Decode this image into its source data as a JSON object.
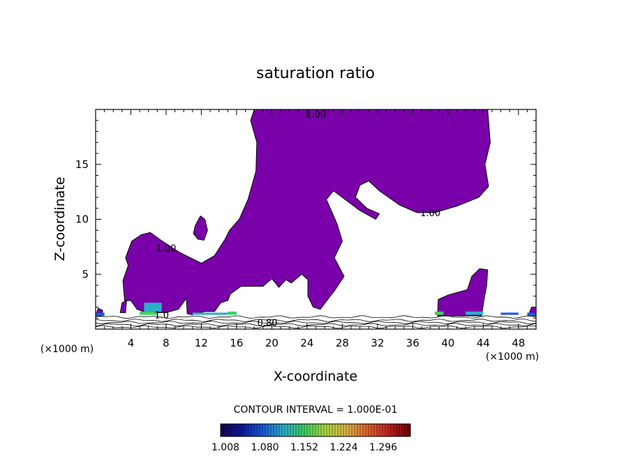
{
  "chart_data": {
    "type": "heatmap",
    "title": "saturation ratio",
    "xlabel": "X-coordinate",
    "ylabel": "Z-coordinate",
    "x_unit": "(×1000 m)",
    "x_unit_right": "(×1000 m)",
    "xlim": [
      0,
      50
    ],
    "ylim": [
      0,
      20
    ],
    "x_ticks": [
      4,
      8,
      12,
      16,
      20,
      24,
      28,
      32,
      36,
      40,
      44,
      48
    ],
    "y_ticks": [
      5,
      10,
      15
    ],
    "contour_labels": [
      {
        "text": "1.00",
        "x": 25,
        "y": 19.6
      },
      {
        "text": "1.00",
        "x": 38,
        "y": 10.6
      },
      {
        "text": "1.00",
        "x": 8,
        "y": 7.4
      },
      {
        "text": "0.80",
        "x": 19.5,
        "y": 0.6
      },
      {
        "text": "1.0",
        "x": 7.5,
        "y": 1.3
      }
    ],
    "fill_color": "#7a00aa",
    "contour_interval_text": "CONTOUR INTERVAL = 1.000E-01",
    "colorbar": {
      "tick_labels": [
        "1.008",
        "1.080",
        "1.152",
        "1.224",
        "1.296"
      ],
      "colors": [
        "#1a0050",
        "#0a1a9a",
        "#1a5ad8",
        "#2ab0c8",
        "#40d060",
        "#b0d840",
        "#e0b040",
        "#e06030",
        "#c02020",
        "#6a0000"
      ]
    },
    "supersaturated_region": {
      "main": [
        [
          18,
          20
        ],
        [
          44.5,
          20
        ],
        [
          44.8,
          17
        ],
        [
          44.2,
          15
        ],
        [
          44.6,
          13
        ],
        [
          43.5,
          12
        ],
        [
          41,
          11.2
        ],
        [
          38.5,
          10.6
        ],
        [
          36.5,
          10.6
        ],
        [
          34.5,
          11.3
        ],
        [
          32.2,
          12.6
        ],
        [
          31,
          13.5
        ],
        [
          30,
          13.1
        ],
        [
          29.5,
          12
        ],
        [
          30.8,
          11
        ],
        [
          32.2,
          10.5
        ],
        [
          31.8,
          10
        ],
        [
          30,
          10.8
        ],
        [
          27,
          12.6
        ],
        [
          26.2,
          11.8
        ],
        [
          27.4,
          9.6
        ],
        [
          28,
          8
        ],
        [
          27.1,
          6.5
        ],
        [
          28.2,
          4.8
        ],
        [
          27.2,
          3.6
        ],
        [
          25.5,
          1.8
        ],
        [
          24.7,
          2
        ],
        [
          24.1,
          3
        ],
        [
          24.1,
          4.5
        ],
        [
          23.4,
          5
        ],
        [
          22.2,
          4.2
        ],
        [
          21.6,
          4.5
        ],
        [
          20.8,
          3.8
        ],
        [
          20,
          4.6
        ],
        [
          19,
          3.9
        ],
        [
          17.5,
          3.9
        ],
        [
          16.5,
          3.9
        ],
        [
          15.3,
          3.2
        ],
        [
          15,
          2.6
        ],
        [
          14.2,
          2.4
        ],
        [
          13.5,
          1.6
        ],
        [
          12.4,
          1.6
        ],
        [
          11,
          1.3
        ],
        [
          10.4,
          1.4
        ],
        [
          10.3,
          2.8
        ],
        [
          9.4,
          1.8
        ],
        [
          8,
          1.5
        ],
        [
          7.2,
          1.5
        ],
        [
          5.8,
          1.5
        ],
        [
          4.7,
          1.8
        ],
        [
          4,
          2.6
        ],
        [
          3.3,
          2.6
        ],
        [
          3.1,
          4.4
        ],
        [
          3.7,
          5.8
        ],
        [
          3.4,
          6.5
        ],
        [
          4.1,
          8
        ],
        [
          5.2,
          8.6
        ],
        [
          6.2,
          8.8
        ],
        [
          7.4,
          8.1
        ],
        [
          9.5,
          7
        ],
        [
          12,
          6
        ],
        [
          13.5,
          6.7
        ],
        [
          14.7,
          8.2
        ],
        [
          15.2,
          9
        ],
        [
          16.3,
          10
        ],
        [
          17.3,
          11.8
        ],
        [
          18.2,
          14.4
        ],
        [
          18.3,
          17
        ],
        [
          17.6,
          19
        ]
      ],
      "islands": [
        [
          [
            11.3,
            9.4
          ],
          [
            11.9,
            10.3
          ],
          [
            12.4,
            10
          ],
          [
            12.7,
            9
          ],
          [
            12.3,
            8.1
          ],
          [
            11.6,
            8.2
          ],
          [
            11.1,
            8.7
          ]
        ],
        [
          [
            38.8,
            1.2
          ],
          [
            38.9,
            2.7
          ],
          [
            40,
            3.1
          ],
          [
            42.2,
            3.6
          ],
          [
            42.7,
            4.8
          ],
          [
            43.6,
            5.5
          ],
          [
            44.5,
            5.4
          ],
          [
            44.4,
            4
          ],
          [
            44.1,
            2.7
          ],
          [
            43.8,
            1.2
          ]
        ],
        [
          [
            0,
            1.2
          ],
          [
            0.3,
            1.9
          ],
          [
            0.8,
            1.7
          ],
          [
            0.7,
            1.2
          ]
        ],
        [
          [
            49.1,
            1.2
          ],
          [
            49.5,
            2
          ],
          [
            50,
            2
          ],
          [
            50,
            1.2
          ]
        ],
        [
          [
            2.8,
            1.5
          ],
          [
            3,
            2.4
          ],
          [
            3.5,
            2.6
          ],
          [
            3.4,
            1.5
          ]
        ]
      ]
    },
    "surface_layer_lines": [
      1.1,
      0.8,
      0.6,
      0.4,
      0.2
    ],
    "surface_colored_patches": [
      {
        "x": [
          5,
          7
        ],
        "y": [
          1.3,
          1.6
        ],
        "color": "#40d060"
      },
      {
        "x": [
          5.5,
          7.5
        ],
        "y": [
          1.6,
          2.4
        ],
        "color": "#2ab0c8"
      },
      {
        "x": [
          11,
          15
        ],
        "y": [
          1.3,
          1.5
        ],
        "color": "#2ab0c8"
      },
      {
        "x": [
          15,
          16
        ],
        "y": [
          1.3,
          1.6
        ],
        "color": "#40d060"
      },
      {
        "x": [
          42,
          44
        ],
        "y": [
          1.3,
          1.6
        ],
        "color": "#2ab0c8"
      },
      {
        "x": [
          38.5,
          39.5
        ],
        "y": [
          1.3,
          1.6
        ],
        "color": "#40d060"
      },
      {
        "x": [
          46,
          48
        ],
        "y": [
          1.3,
          1.5
        ],
        "color": "#1a5ad8"
      },
      {
        "x": [
          0,
          1
        ],
        "y": [
          1.2,
          1.5
        ],
        "color": "#1a5ad8"
      },
      {
        "x": [
          49,
          50
        ],
        "y": [
          1.2,
          1.5
        ],
        "color": "#1a5ad8"
      }
    ],
    "grid": false
  }
}
